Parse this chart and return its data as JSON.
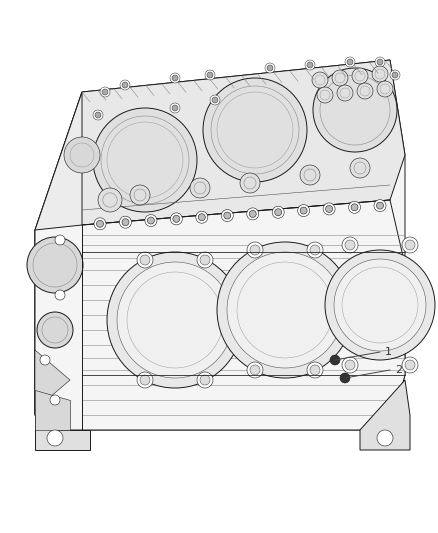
{
  "background_color": "#ffffff",
  "figure_width": 4.38,
  "figure_height": 5.33,
  "dpi": 100,
  "label1": "1",
  "label2": "2",
  "text_color": "#333333",
  "line_color": "#444444",
  "font_size": 8,
  "lw_main": 0.7,
  "lw_thin": 0.4,
  "color_main": "#1a1a1a",
  "color_mid": "#555555",
  "color_light": "#888888",
  "color_vlight": "#bbbbbb",
  "block_fill": "#f0f0f0",
  "top_fill": "#e8e8e8",
  "front_fill": "#f5f5f5",
  "side_fill": "#ececec"
}
